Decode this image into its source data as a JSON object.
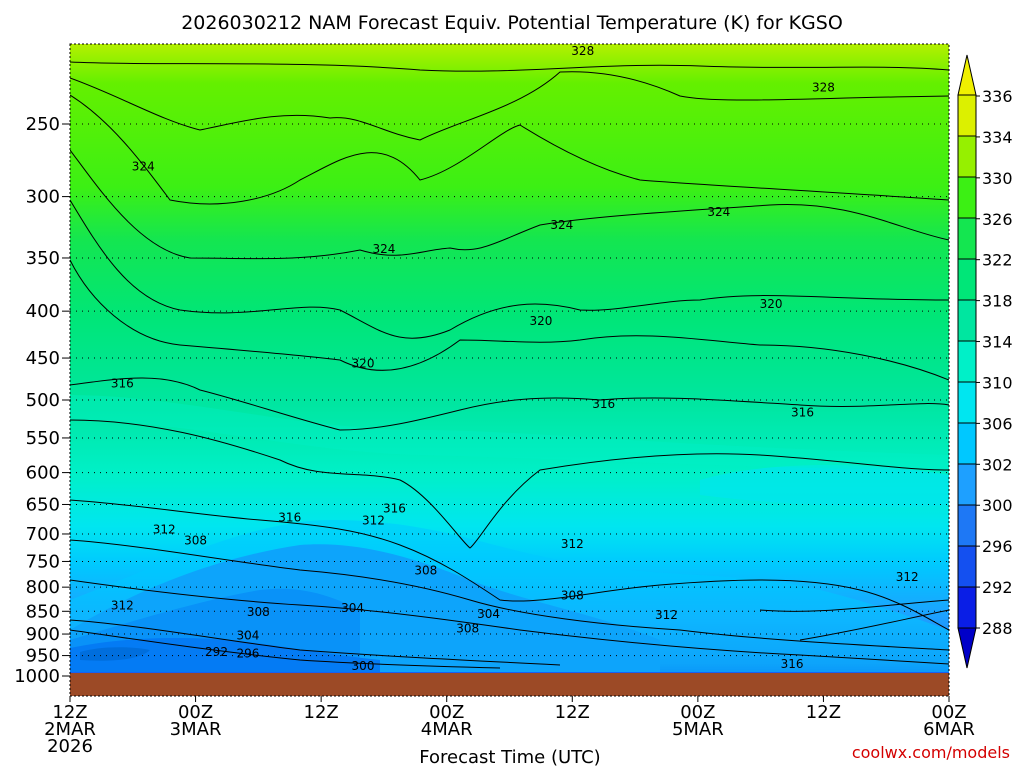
{
  "chart_data": {
    "type": "heatmap",
    "title": "2026030212 NAM Forecast Equiv. Potential Temperature (K) for KGSO",
    "xlabel": "Forecast Time (UTC)",
    "ylabel": "",
    "credit": "coolwx.com/models",
    "y_axis": {
      "scale": "log",
      "range": [
        1000,
        200
      ],
      "ticks": [
        250,
        300,
        350,
        400,
        450,
        500,
        550,
        600,
        650,
        700,
        750,
        800,
        850,
        900,
        950,
        1000
      ]
    },
    "x_axis": {
      "range_hours": [
        0,
        84
      ],
      "ticks": [
        {
          "hour": 0,
          "lines": [
            "12Z",
            "2MAR",
            "2026"
          ]
        },
        {
          "hour": 12,
          "lines": [
            "00Z",
            "3MAR"
          ]
        },
        {
          "hour": 24,
          "lines": [
            "12Z"
          ]
        },
        {
          "hour": 36,
          "lines": [
            "00Z",
            "4MAR"
          ]
        },
        {
          "hour": 48,
          "lines": [
            "12Z"
          ]
        },
        {
          "hour": 60,
          "lines": [
            "00Z",
            "5MAR"
          ]
        },
        {
          "hour": 72,
          "lines": [
            "12Z"
          ]
        },
        {
          "hour": 84,
          "lines": [
            "00Z",
            "6MAR"
          ]
        }
      ]
    },
    "colorbar": {
      "labels": [
        288,
        292,
        296,
        300,
        302,
        306,
        310,
        314,
        318,
        322,
        326,
        330,
        334,
        336
      ],
      "colors": [
        "#0000c8",
        "#0a1ee6",
        "#1450f0",
        "#1e78f5",
        "#1ea0ff",
        "#00c8ff",
        "#00e6f0",
        "#00f0c8",
        "#00e6a0",
        "#00e678",
        "#14e650",
        "#3cf014",
        "#96f000",
        "#dcf000",
        "#f0f000"
      ]
    },
    "contour_labels": [
      {
        "value": 328,
        "hour": 49,
        "p": 208
      },
      {
        "value": 328,
        "hour": 72,
        "p": 228
      },
      {
        "value": 324,
        "hour": 7,
        "p": 278
      },
      {
        "value": 324,
        "hour": 30,
        "p": 342
      },
      {
        "value": 324,
        "hour": 47,
        "p": 322
      },
      {
        "value": 324,
        "hour": 62,
        "p": 312
      },
      {
        "value": 320,
        "hour": 45,
        "p": 410
      },
      {
        "value": 320,
        "hour": 28,
        "p": 456
      },
      {
        "value": 320,
        "hour": 67,
        "p": 393
      },
      {
        "value": 316,
        "hour": 5,
        "p": 480
      },
      {
        "value": 316,
        "hour": 51,
        "p": 505
      },
      {
        "value": 316,
        "hour": 70,
        "p": 516
      },
      {
        "value": 316,
        "hour": 21,
        "p": 672
      },
      {
        "value": 316,
        "hour": 31,
        "p": 657
      },
      {
        "value": 312,
        "hour": 9,
        "p": 692
      },
      {
        "value": 312,
        "hour": 29,
        "p": 677
      },
      {
        "value": 312,
        "hour": 48,
        "p": 718
      },
      {
        "value": 312,
        "hour": 5,
        "p": 838
      },
      {
        "value": 312,
        "hour": 57,
        "p": 858
      },
      {
        "value": 312,
        "hour": 80,
        "p": 780
      },
      {
        "value": 308,
        "hour": 12,
        "p": 712
      },
      {
        "value": 308,
        "hour": 34,
        "p": 767
      },
      {
        "value": 308,
        "hour": 48,
        "p": 817
      },
      {
        "value": 308,
        "hour": 18,
        "p": 851
      },
      {
        "value": 308,
        "hour": 38,
        "p": 888
      },
      {
        "value": 304,
        "hour": 27,
        "p": 843
      },
      {
        "value": 304,
        "hour": 40,
        "p": 856
      },
      {
        "value": 304,
        "hour": 17,
        "p": 903
      },
      {
        "value": 300,
        "hour": 28,
        "p": 975
      },
      {
        "value": 316,
        "hour": 69,
        "p": 970
      },
      {
        "value": 292,
        "hour": 14,
        "p": 942
      },
      {
        "value": 296,
        "hour": 17,
        "p": 945
      }
    ]
  }
}
